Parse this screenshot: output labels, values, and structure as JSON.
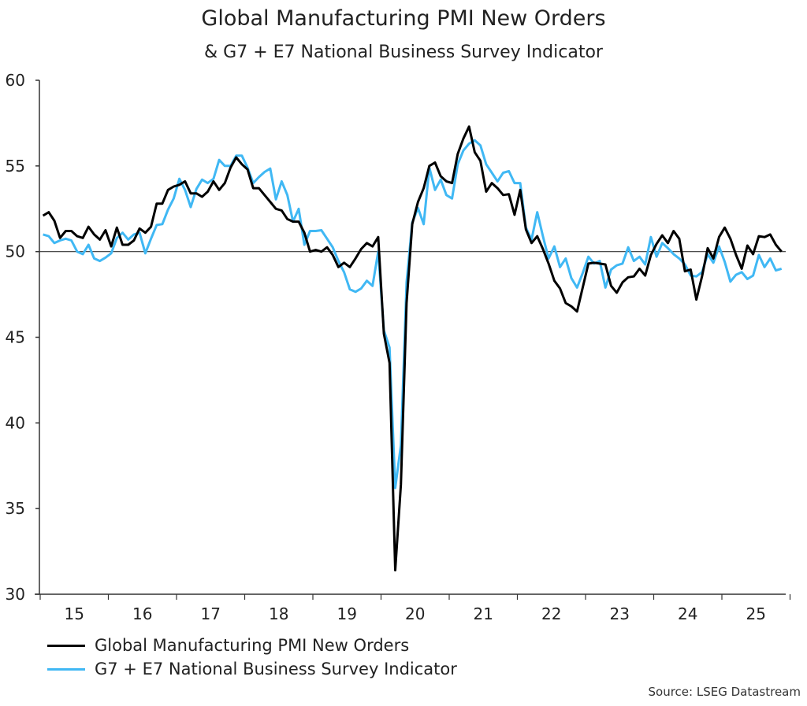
{
  "chart_data": {
    "type": "line",
    "title": "Global Manufacturing PMI New Orders",
    "subtitle": "& G7 + E7 National Business Survey Indicator",
    "source": "Source: LSEG Datastream",
    "ylim": [
      30,
      60
    ],
    "yticks": [
      30,
      35,
      40,
      45,
      50,
      55,
      60
    ],
    "reference_line": 50,
    "xticks": [
      "15",
      "16",
      "17",
      "18",
      "19",
      "20",
      "21",
      "22",
      "23",
      "24",
      "25"
    ],
    "grid": false,
    "legend_placement": "bottom-left",
    "x": [
      "2015-01",
      "2015-02",
      "2015-03",
      "2015-04",
      "2015-05",
      "2015-06",
      "2015-07",
      "2015-08",
      "2015-09",
      "2015-10",
      "2015-11",
      "2015-12",
      "2016-01",
      "2016-02",
      "2016-03",
      "2016-04",
      "2016-05",
      "2016-06",
      "2016-07",
      "2016-08",
      "2016-09",
      "2016-10",
      "2016-11",
      "2016-12",
      "2017-01",
      "2017-02",
      "2017-03",
      "2017-04",
      "2017-05",
      "2017-06",
      "2017-07",
      "2017-08",
      "2017-09",
      "2017-10",
      "2017-11",
      "2017-12",
      "2018-01",
      "2018-02",
      "2018-03",
      "2018-04",
      "2018-05",
      "2018-06",
      "2018-07",
      "2018-08",
      "2018-09",
      "2018-10",
      "2018-11",
      "2018-12",
      "2019-01",
      "2019-02",
      "2019-03",
      "2019-04",
      "2019-05",
      "2019-06",
      "2019-07",
      "2019-08",
      "2019-09",
      "2019-10",
      "2019-11",
      "2019-12",
      "2020-01",
      "2020-02",
      "2020-03",
      "2020-04",
      "2020-05",
      "2020-06",
      "2020-07",
      "2020-08",
      "2020-09",
      "2020-10",
      "2020-11",
      "2020-12",
      "2021-01",
      "2021-02",
      "2021-03",
      "2021-04",
      "2021-05",
      "2021-06",
      "2021-07",
      "2021-08",
      "2021-09",
      "2021-10",
      "2021-11",
      "2021-12",
      "2022-01",
      "2022-02",
      "2022-03",
      "2022-04",
      "2022-05",
      "2022-06",
      "2022-07",
      "2022-08",
      "2022-09",
      "2022-10",
      "2022-11",
      "2022-12",
      "2023-01",
      "2023-02",
      "2023-03",
      "2023-04",
      "2023-05",
      "2023-06",
      "2023-07",
      "2023-08",
      "2023-09",
      "2023-10",
      "2023-11",
      "2023-12",
      "2024-01",
      "2024-02",
      "2024-03",
      "2024-04",
      "2024-05",
      "2024-06",
      "2024-07",
      "2024-08",
      "2024-09",
      "2024-10",
      "2024-11",
      "2024-12",
      "2025-01",
      "2025-02",
      "2025-03",
      "2025-04",
      "2025-05",
      "2025-06",
      "2025-07",
      "2025-08",
      "2025-09",
      "2025-10",
      "2025-11"
    ],
    "series": [
      {
        "name": "Global Manufacturing PMI New Orders",
        "color": "#000000",
        "values": [
          52.1,
          52.3,
          51.8,
          50.8,
          51.2,
          51.2,
          50.9,
          50.8,
          51.45,
          51.0,
          50.7,
          51.25,
          50.3,
          51.4,
          50.4,
          50.4,
          50.65,
          51.35,
          51.1,
          51.45,
          52.8,
          52.8,
          53.6,
          53.8,
          53.9,
          54.1,
          53.4,
          53.4,
          53.2,
          53.5,
          54.1,
          53.6,
          54.0,
          54.9,
          55.5,
          55.1,
          54.8,
          53.7,
          53.7,
          53.3,
          52.9,
          52.5,
          52.4,
          51.9,
          51.75,
          51.75,
          51.1,
          50.0,
          50.1,
          50.0,
          50.25,
          49.8,
          49.1,
          49.35,
          49.1,
          49.6,
          50.15,
          50.5,
          50.3,
          50.85,
          45.2,
          43.5,
          31.4,
          36.4,
          47.0,
          51.6,
          52.9,
          53.7,
          55.0,
          55.2,
          54.4,
          54.1,
          54.0,
          55.7,
          56.6,
          57.3,
          55.8,
          55.3,
          53.5,
          54.0,
          53.7,
          53.3,
          53.35,
          52.15,
          53.6,
          51.3,
          50.5,
          50.9,
          50.15,
          49.3,
          48.3,
          47.85,
          47.0,
          46.8,
          46.5,
          47.9,
          49.3,
          49.35,
          49.3,
          49.25,
          48.0,
          47.6,
          48.2,
          48.5,
          48.55,
          49.0,
          48.6,
          49.8,
          50.45,
          50.95,
          50.5,
          51.2,
          50.75,
          48.85,
          48.95,
          47.2,
          48.55,
          50.2,
          49.6,
          50.85,
          51.4,
          50.75,
          49.8,
          49.0,
          50.35,
          49.85,
          50.9,
          50.85,
          51.0,
          50.4,
          50.0
        ]
      },
      {
        "name": "G7 + E7 National Business Survey Indicator",
        "color": "#40b8f4",
        "values": [
          51.0,
          50.9,
          50.5,
          50.65,
          50.75,
          50.65,
          50.0,
          49.85,
          50.4,
          49.6,
          49.45,
          49.65,
          49.9,
          50.8,
          51.1,
          50.7,
          51.0,
          51.1,
          49.9,
          50.75,
          51.55,
          51.6,
          52.45,
          53.1,
          54.25,
          53.6,
          52.6,
          53.65,
          54.2,
          54.0,
          54.25,
          55.35,
          55.0,
          55.0,
          55.6,
          55.6,
          54.9,
          54.0,
          54.35,
          54.65,
          54.85,
          53.05,
          54.1,
          53.3,
          51.75,
          52.5,
          50.4,
          51.2,
          51.2,
          51.25,
          50.75,
          50.25,
          49.45,
          48.8,
          47.8,
          47.65,
          47.85,
          48.3,
          48.0,
          50.0,
          45.4,
          44.4,
          36.2,
          38.7,
          48.2,
          51.7,
          52.55,
          51.6,
          54.9,
          53.6,
          54.2,
          53.3,
          53.1,
          55.1,
          55.9,
          56.3,
          56.5,
          56.2,
          55.1,
          54.6,
          54.1,
          54.6,
          54.7,
          54.0,
          54.0,
          51.4,
          50.7,
          52.3,
          50.9,
          49.6,
          50.3,
          49.1,
          49.6,
          48.45,
          47.9,
          48.75,
          49.7,
          49.3,
          49.45,
          47.9,
          48.95,
          49.2,
          49.3,
          50.25,
          49.45,
          49.7,
          49.25,
          50.85,
          49.7,
          50.5,
          50.2,
          49.85,
          49.6,
          49.25,
          48.6,
          48.55,
          48.8,
          49.85,
          49.35,
          50.3,
          49.4,
          48.25,
          48.65,
          48.8,
          48.4,
          48.6,
          49.8,
          49.1,
          49.6,
          48.9,
          49.0
        ]
      }
    ]
  }
}
